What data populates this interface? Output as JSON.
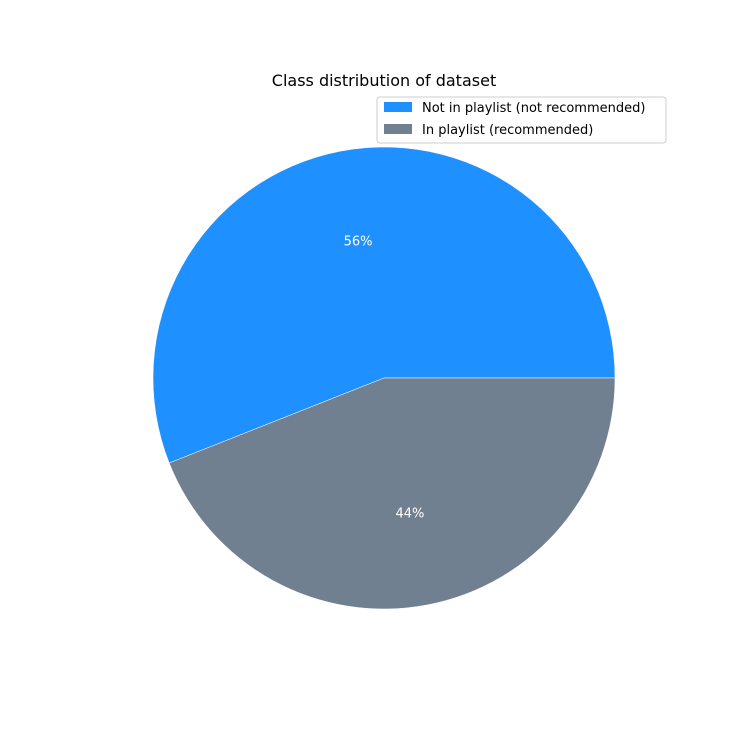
{
  "chart_data": {
    "type": "pie",
    "title": "Class distribution of dataset",
    "series": [
      {
        "name": "Not in playlist (not recommended)",
        "value": 56,
        "label": "56%",
        "color": "#1e90ff"
      },
      {
        "name": "In playlist (recommended)",
        "value": 44,
        "label": "44%",
        "color": "#708090"
      }
    ],
    "start_angle_deg": 0,
    "direction": "counterclockwise",
    "legend_position": "top-right"
  }
}
